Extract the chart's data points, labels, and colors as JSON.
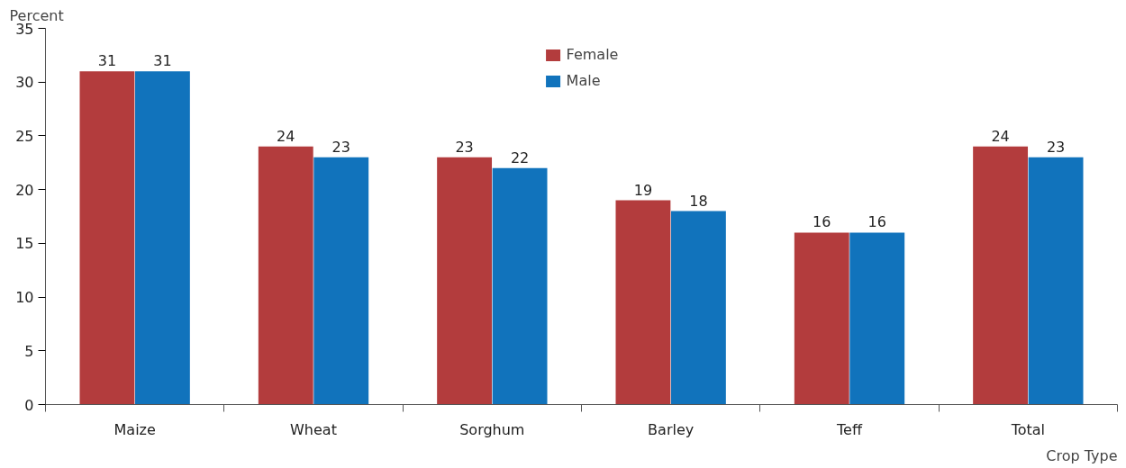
{
  "chart_data": {
    "type": "bar",
    "xlabel": "Crop Type",
    "ylabel": "Percent",
    "categories": [
      "Maize",
      "Wheat",
      "Sorghum",
      "Barley",
      "Teff",
      "Total"
    ],
    "series": [
      {
        "name": "Female",
        "color": "#b33c3d",
        "values": [
          31,
          24,
          23,
          19,
          16,
          24
        ]
      },
      {
        "name": "Male",
        "color": "#1173bc",
        "values": [
          31,
          23,
          22,
          18,
          16,
          23
        ]
      }
    ],
    "ylim": [
      0,
      35
    ],
    "yticks": [
      0,
      5,
      10,
      15,
      20,
      25,
      30,
      35
    ],
    "data_labels": true,
    "grid": false,
    "legend": "top"
  }
}
